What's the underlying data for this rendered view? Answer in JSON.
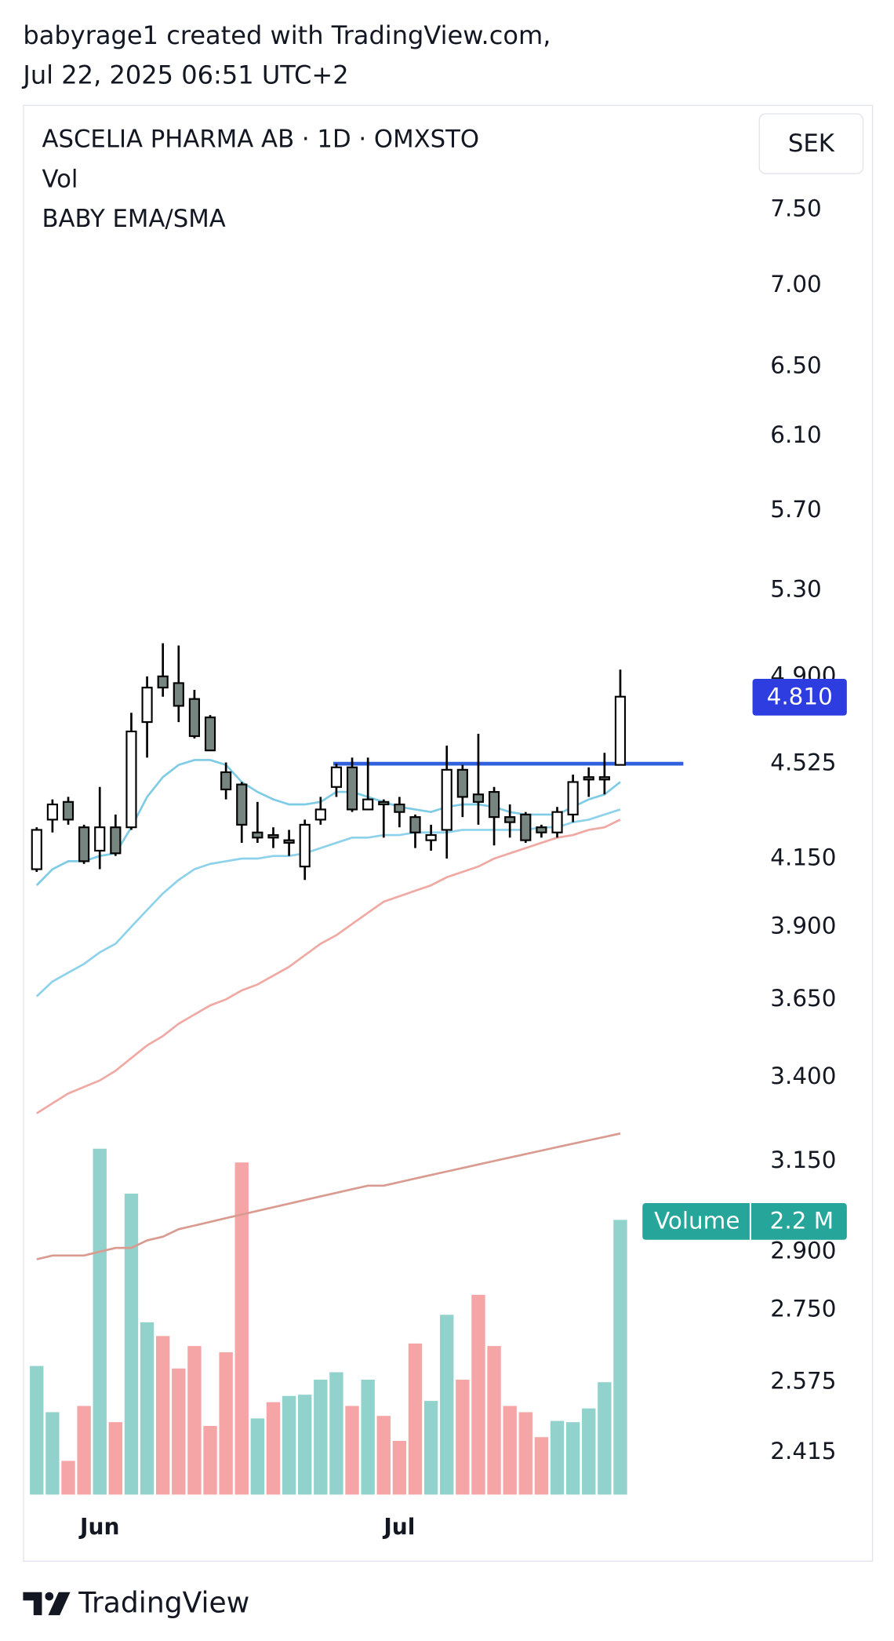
{
  "header": {
    "author_line": "babyrage1 created with TradingView.com,",
    "timestamp": "Jul 22, 2025 06:51 UTC+2"
  },
  "chart_data": {
    "type": "candlestick",
    "title": "ASCELIA PHARMA AB · 1D · OMXSTO",
    "indicators": [
      "Vol",
      "BABY EMA/SMA"
    ],
    "currency": "SEK",
    "log_scale": true,
    "categories": [
      null,
      null,
      null,
      null,
      "Jun",
      null,
      null,
      null,
      null,
      null,
      null,
      null,
      null,
      null,
      null,
      null,
      null,
      null,
      null,
      null,
      null,
      null,
      null,
      "Jul",
      null,
      null,
      null,
      null,
      null,
      null,
      null,
      null,
      null,
      null,
      null,
      null,
      null,
      null
    ],
    "open": [
      4.11,
      4.3,
      4.37,
      4.27,
      4.18,
      4.27,
      4.27,
      4.7,
      4.9,
      4.87,
      4.8,
      4.72,
      4.49,
      4.44,
      4.25,
      4.24,
      4.22,
      4.12,
      4.3,
      4.43,
      4.51,
      4.34,
      4.37,
      4.36,
      4.31,
      4.22,
      4.26,
      4.5,
      4.4,
      4.41,
      4.31,
      4.32,
      4.27,
      4.25,
      4.32,
      4.47,
      4.47,
      4.52
    ],
    "high": [
      4.27,
      4.38,
      4.39,
      4.28,
      4.43,
      4.32,
      4.74,
      4.9,
      5.05,
      5.04,
      4.84,
      4.73,
      4.53,
      4.45,
      4.37,
      4.27,
      4.26,
      4.3,
      4.39,
      4.525,
      4.55,
      4.55,
      4.38,
      4.39,
      4.32,
      4.28,
      4.6,
      4.52,
      4.65,
      4.43,
      4.36,
      4.33,
      4.28,
      4.35,
      4.48,
      4.51,
      4.57,
      4.93
    ],
    "low": [
      4.1,
      4.25,
      4.28,
      4.13,
      4.11,
      4.16,
      4.26,
      4.55,
      4.81,
      4.7,
      4.63,
      4.58,
      4.38,
      4.21,
      4.21,
      4.19,
      4.16,
      4.07,
      4.28,
      4.39,
      4.33,
      4.34,
      4.23,
      4.27,
      4.19,
      4.18,
      4.15,
      4.31,
      4.28,
      4.2,
      4.23,
      4.21,
      4.23,
      4.23,
      4.29,
      4.39,
      4.4,
      4.52
    ],
    "close": [
      4.26,
      4.36,
      4.3,
      4.14,
      4.27,
      4.17,
      4.66,
      4.85,
      4.85,
      4.77,
      4.64,
      4.58,
      4.42,
      4.28,
      4.23,
      4.23,
      4.21,
      4.28,
      4.34,
      4.51,
      4.34,
      4.38,
      4.36,
      4.33,
      4.25,
      4.24,
      4.5,
      4.39,
      4.37,
      4.31,
      4.29,
      4.22,
      4.25,
      4.33,
      4.45,
      4.46,
      4.46,
      4.81
    ],
    "up_color": "#ffffff",
    "down_color": "#76857f",
    "last_price_label": "4.810",
    "last_price_color": "#2d3de0",
    "volume_legend": "Volume",
    "volume_value_label": "2.2 M",
    "volume_legend_color": "#26a69a",
    "volume": [
      1.03,
      0.66,
      0.27,
      0.71,
      2.77,
      0.58,
      2.41,
      1.38,
      1.27,
      1.01,
      1.19,
      0.55,
      1.14,
      2.66,
      0.61,
      0.74,
      0.79,
      0.8,
      0.92,
      0.98,
      0.71,
      0.92,
      0.63,
      0.43,
      1.21,
      0.75,
      1.44,
      0.92,
      1.6,
      1.19,
      0.71,
      0.66,
      0.46,
      0.59,
      0.58,
      0.69,
      0.9,
      2.2
    ],
    "volume_colors": [
      "#92d2cc",
      "#92d2cc",
      "#f5a5a5",
      "#f5a5a5",
      "#92d2cc",
      "#f5a5a5",
      "#92d2cc",
      "#92d2cc",
      "#f5a5a5",
      "#f5a5a5",
      "#f5a5a5",
      "#f5a5a5",
      "#f5a5a5",
      "#f5a5a5",
      "#92d2cc",
      "#f5a5a5",
      "#92d2cc",
      "#92d2cc",
      "#92d2cc",
      "#92d2cc",
      "#f5a5a5",
      "#92d2cc",
      "#f5a5a5",
      "#f5a5a5",
      "#f5a5a5",
      "#92d2cc",
      "#92d2cc",
      "#f5a5a5",
      "#f5a5a5",
      "#f5a5a5",
      "#f5a5a5",
      "#f5a5a5",
      "#f5a5a5",
      "#92d2cc",
      "#92d2cc",
      "#92d2cc",
      "#92d2cc",
      "#92d2cc"
    ],
    "volume_ylim": [
      0,
      11.13
    ],
    "moving_averages": [
      {
        "color": "#7ecbe6",
        "values": [
          4.05,
          4.11,
          4.14,
          4.14,
          4.16,
          4.17,
          4.27,
          4.39,
          4.47,
          4.52,
          4.54,
          4.54,
          4.52,
          4.45,
          4.41,
          4.38,
          4.36,
          4.36,
          4.37,
          4.41,
          4.41,
          4.39,
          4.37,
          4.35,
          4.34,
          4.33,
          4.35,
          4.36,
          4.36,
          4.35,
          4.33,
          4.32,
          4.32,
          4.32,
          4.35,
          4.38,
          4.4,
          4.45
        ]
      },
      {
        "color": "#8dd2ea",
        "values": [
          3.66,
          3.71,
          3.74,
          3.77,
          3.81,
          3.84,
          3.9,
          3.96,
          4.02,
          4.07,
          4.11,
          4.13,
          4.14,
          4.15,
          4.15,
          4.16,
          4.16,
          4.17,
          4.19,
          4.21,
          4.23,
          4.23,
          4.24,
          4.24,
          4.25,
          4.25,
          4.25,
          4.26,
          4.26,
          4.26,
          4.26,
          4.26,
          4.27,
          4.27,
          4.29,
          4.3,
          4.32,
          4.34
        ]
      },
      {
        "color": "#f0a9a2",
        "values": [
          3.29,
          3.32,
          3.35,
          3.37,
          3.39,
          3.42,
          3.46,
          3.5,
          3.53,
          3.57,
          3.6,
          3.63,
          3.65,
          3.68,
          3.7,
          3.73,
          3.76,
          3.8,
          3.84,
          3.87,
          3.91,
          3.95,
          3.99,
          4.01,
          4.03,
          4.05,
          4.08,
          4.1,
          4.12,
          4.15,
          4.17,
          4.19,
          4.21,
          4.23,
          4.24,
          4.26,
          4.27,
          4.3
        ]
      },
      {
        "color": "#d99b90",
        "values": [
          2.88,
          2.89,
          2.89,
          2.89,
          2.9,
          2.91,
          2.91,
          2.93,
          2.94,
          2.96,
          2.97,
          2.98,
          2.99,
          3.0,
          3.01,
          3.02,
          3.03,
          3.04,
          3.05,
          3.06,
          3.07,
          3.08,
          3.08,
          3.09,
          3.1,
          3.11,
          3.12,
          3.13,
          3.14,
          3.15,
          3.16,
          3.17,
          3.18,
          3.19,
          3.2,
          3.21,
          3.22,
          3.23
        ]
      }
    ],
    "horizontal_line": {
      "value": 4.525,
      "color": "#3060dd"
    },
    "ylim": [
      2.324,
      8.25
    ],
    "yticks": [
      {
        "value": 7.5,
        "label": "7.50"
      },
      {
        "value": 7.0,
        "label": "7.00"
      },
      {
        "value": 6.5,
        "label": "6.50"
      },
      {
        "value": 6.1,
        "label": "6.10"
      },
      {
        "value": 5.7,
        "label": "5.70"
      },
      {
        "value": 5.3,
        "label": "5.30"
      },
      {
        "value": 4.9,
        "label": "4.900"
      },
      {
        "value": 4.525,
        "label": "4.525"
      },
      {
        "value": 4.15,
        "label": "4.150"
      },
      {
        "value": 3.9,
        "label": "3.900"
      },
      {
        "value": 3.65,
        "label": "3.650"
      },
      {
        "value": 3.4,
        "label": "3.400"
      },
      {
        "value": 3.15,
        "label": "3.150"
      },
      {
        "value": 2.9,
        "label": "2.900"
      },
      {
        "value": 2.75,
        "label": "2.750"
      },
      {
        "value": 2.575,
        "label": "2.575"
      },
      {
        "value": 2.415,
        "label": "2.415"
      }
    ]
  },
  "footer": {
    "brand": "TradingView"
  }
}
